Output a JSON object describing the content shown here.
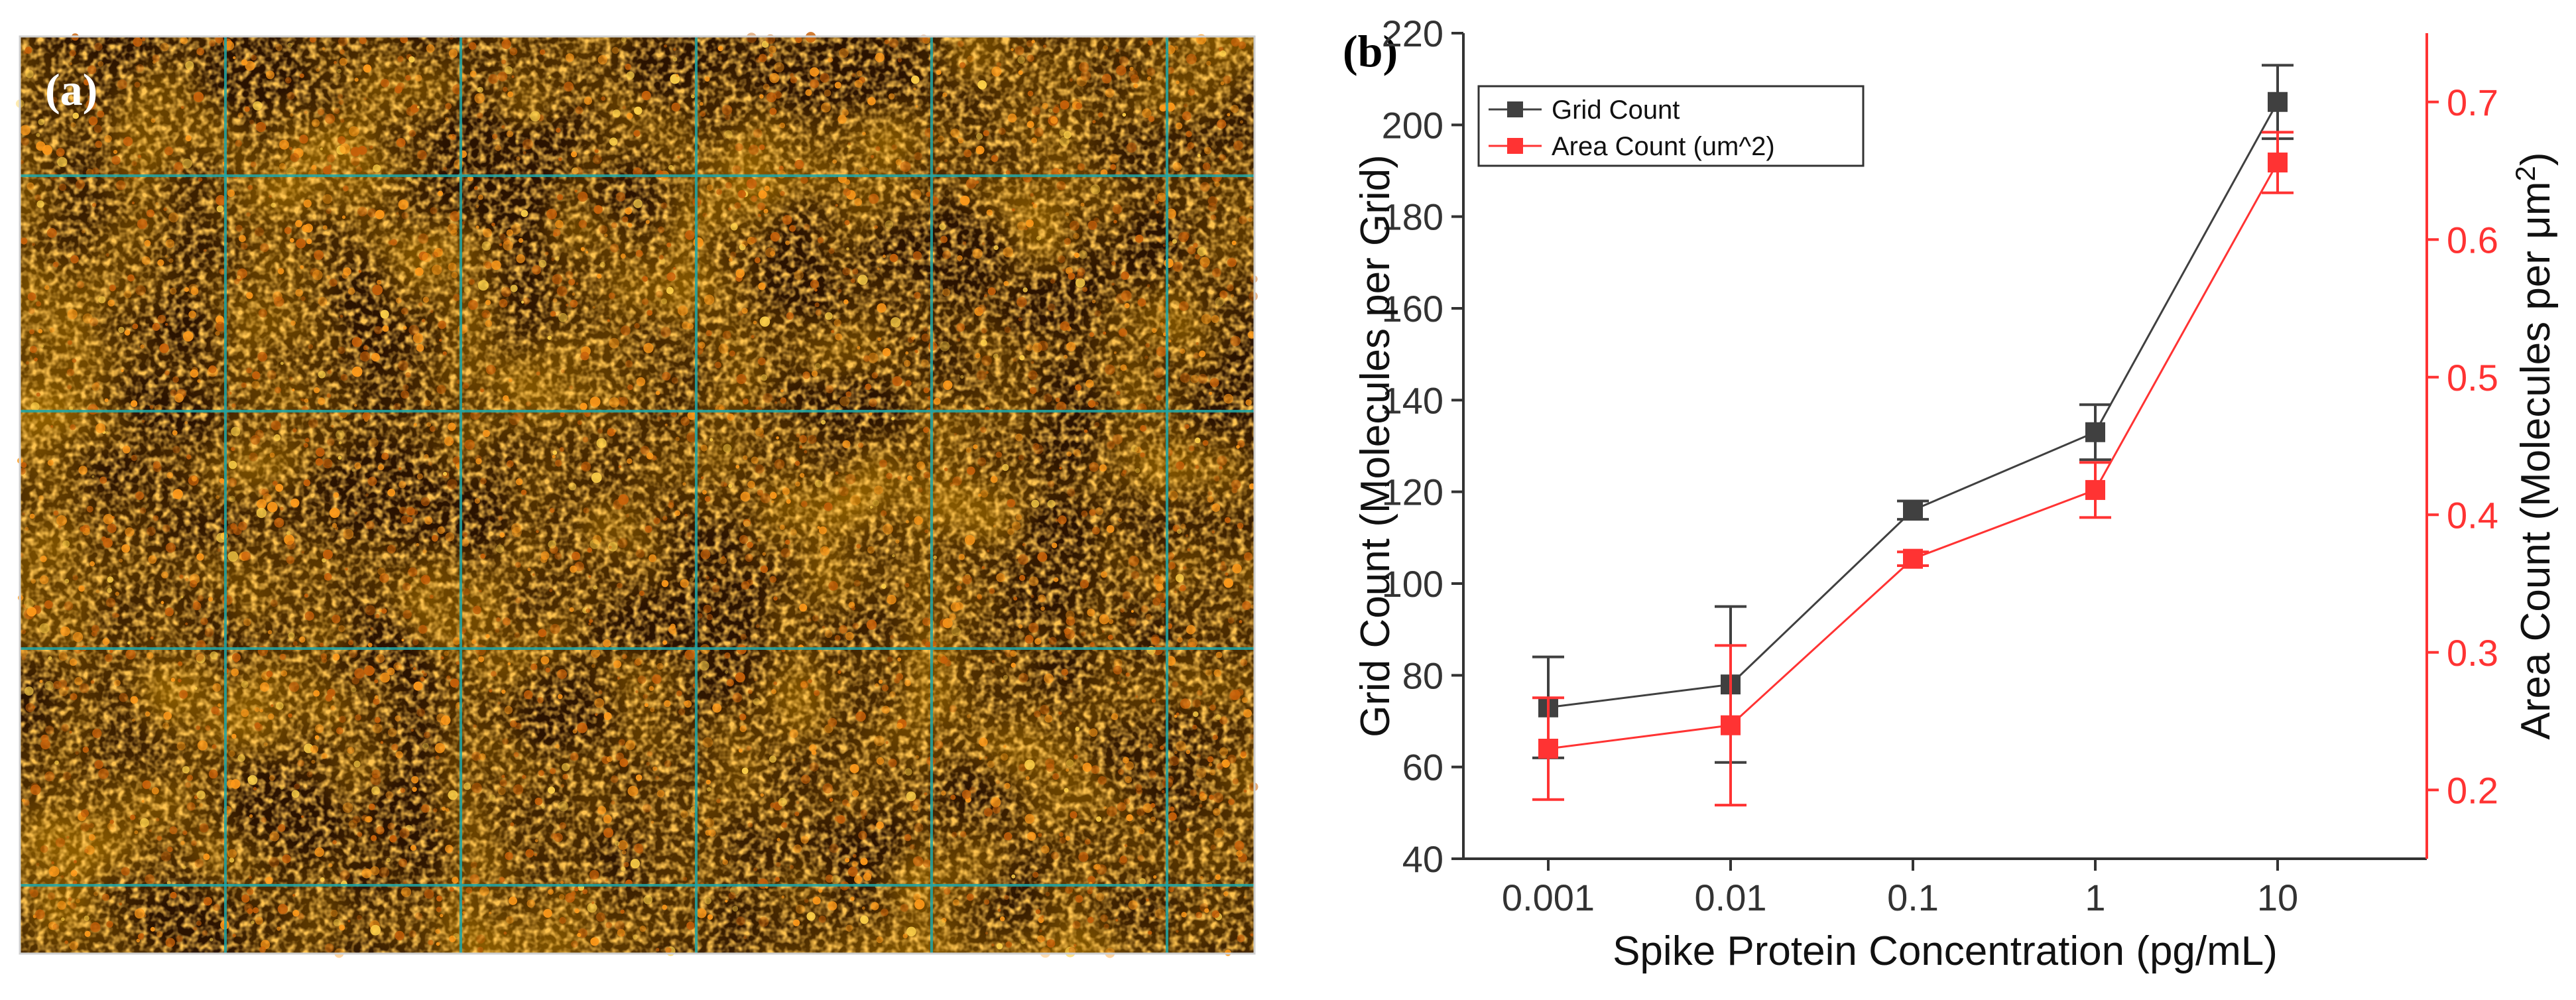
{
  "panel_a": {
    "label": "(a)",
    "description_colors": {
      "background": "#2a1200",
      "speckle": "#ff9a1a",
      "grid_line": "#1fa6a6"
    }
  },
  "panel_b": {
    "label": "(b)"
  },
  "chart_data": {
    "type": "line",
    "x_scale": "log",
    "categories": [
      "0.001",
      "0.01",
      "0.1",
      "1",
      "10"
    ],
    "x": [
      0.001,
      0.01,
      0.1,
      1,
      10
    ],
    "xlabel": "Spike Protein Concentration (pg/mL)",
    "ylabel_left": "Grid Count (Molecules per Grid)",
    "ylabel_right_prefix": "Area Count (Molecules per μm",
    "ylabel_right_sup": "2",
    "ylabel_right_suffix": ")",
    "ylim_left": [
      40,
      220
    ],
    "yticks_left": [
      40,
      60,
      80,
      100,
      120,
      140,
      160,
      180,
      200,
      220
    ],
    "ylim_right": [
      0.15,
      0.75
    ],
    "yticks_right": [
      0.2,
      0.3,
      0.4,
      0.5,
      0.6,
      0.7
    ],
    "legend_position": "top-left",
    "series": [
      {
        "name": "Grid Count",
        "axis": "left",
        "color": "#404040",
        "values": [
          73,
          78,
          116,
          133,
          205
        ],
        "errors": [
          11,
          17,
          2,
          6,
          8
        ]
      },
      {
        "name": "Area Count (um^2)",
        "axis": "right",
        "color": "#ff3333",
        "values": [
          0.23,
          0.247,
          0.368,
          0.418,
          0.656
        ],
        "errors": [
          0.037,
          0.058,
          0.005,
          0.02,
          0.022
        ]
      }
    ]
  }
}
